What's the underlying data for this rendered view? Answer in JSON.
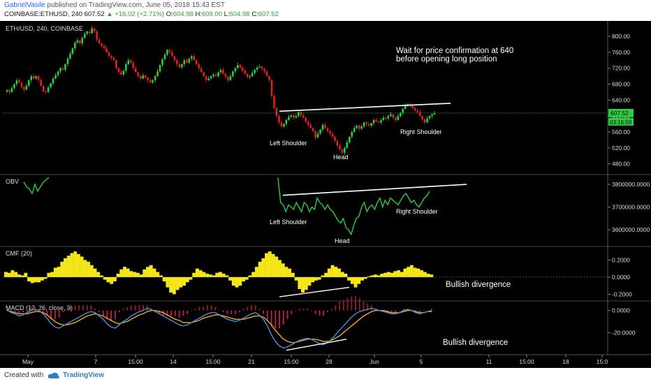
{
  "header": {
    "author": "GabrielVasile",
    "published": "published on TradingView.com, June 05, 2018 15:43 EST",
    "symbol": "COINBASE:ETHUSD, 240",
    "price": "607.52",
    "change_arrow": "▲",
    "change": "+16.02 (+2.71%)",
    "o_label": "O:",
    "o_value": "604.98",
    "h_label": "H:",
    "h_value": "609.00",
    "l_label": "L:",
    "l_value": "604.98",
    "c_label": "C:",
    "c_value": "607.52"
  },
  "footer": {
    "created_with": "Created with",
    "brand": "TradingView"
  },
  "colors": {
    "background": "#000000",
    "up": "#2ecc40",
    "down": "#e0201a",
    "obv": "#2ecc40",
    "cmf": "#f5e61a",
    "macd_line": "#4a90d9",
    "signal_line": "#f5a623",
    "hist_pos": "#8b1a2e",
    "hist_neg": "#b0204a",
    "trendline": "#ffffff",
    "price_badge": "#2ecc40"
  },
  "chart_data": [
    {
      "type": "candlestick",
      "title": "ETH/USD, 240, COINBASE",
      "y_ticks": [
        "800.00",
        "760.00",
        "720.00",
        "680.00",
        "640.00",
        "600.00",
        "560.00",
        "520.00",
        "480.00"
      ],
      "ylim": [
        455,
        835
      ],
      "last_price": "607.52",
      "countdown": "03:16:59",
      "annotations": [
        "Wait for price confirmation at 640",
        "before opening long position",
        "Left Shoulder",
        "Head",
        "Right Shoulder"
      ],
      "close": [
        665,
        660,
        670,
        680,
        690,
        684,
        672,
        666,
        676,
        690,
        700,
        694,
        700,
        690,
        676,
        662,
        660,
        672,
        682,
        694,
        702,
        712,
        720,
        716,
        730,
        744,
        756,
        770,
        784,
        790,
        782,
        796,
        806,
        812,
        808,
        820,
        812,
        792,
        782,
        776,
        770,
        760,
        750,
        746,
        740,
        720,
        710,
        704,
        714,
        730,
        740,
        734,
        720,
        710,
        700,
        694,
        702,
        696,
        690,
        684,
        690,
        700,
        712,
        728,
        742,
        754,
        766,
        760,
        750,
        740,
        730,
        722,
        730,
        740,
        734,
        744,
        750,
        740,
        730,
        720,
        710,
        700,
        690,
        694,
        700,
        704,
        700,
        710,
        716,
        706,
        698,
        690,
        700,
        712,
        720,
        728,
        722,
        714,
        706,
        698,
        700,
        708,
        716,
        722,
        724,
        718,
        712,
        700,
        690,
        650,
        620,
        600,
        584,
        574,
        580,
        590,
        598,
        602,
        596,
        600,
        610,
        602,
        596,
        586,
        578,
        570,
        562,
        546,
        556,
        566,
        578,
        570,
        562,
        556,
        548,
        538,
        526,
        516,
        508,
        520,
        534,
        548,
        560,
        570,
        576,
        568,
        574,
        584,
        580,
        576,
        582,
        590,
        586,
        584,
        590,
        596,
        594,
        600,
        604,
        596,
        590,
        600,
        608,
        618,
        626,
        630,
        626,
        620,
        614,
        610,
        600,
        592,
        584,
        594,
        600,
        604,
        607.52
      ]
    },
    {
      "type": "line",
      "title": "OBV",
      "y_ticks": [
        "3800000.0000",
        "3700000.0000",
        "3600000.0000"
      ],
      "ylim": [
        3530000,
        3840000
      ],
      "annotations": [
        "Left Shoulder",
        "Head",
        "Right Shoulder"
      ],
      "segments": [
        [
          3810000,
          3790000,
          3780000,
          3760000,
          3800000,
          3770000,
          3790000,
          3810000,
          3820000,
          3830000
        ],
        [
          3830000,
          3720000,
          3710000,
          3680000,
          3710000,
          3700000,
          3690000,
          3720000,
          3700000,
          3680000,
          3720000,
          3710000,
          3680000,
          3700000,
          3690000,
          3740000,
          3720000,
          3710000,
          3690000,
          3710000,
          3690000,
          3680000,
          3660000,
          3640000,
          3630000,
          3650000,
          3610000,
          3600000,
          3580000,
          3620000,
          3650000,
          3660000,
          3700000,
          3720000,
          3680000,
          3700000,
          3710000,
          3690000,
          3720000,
          3740000,
          3700000,
          3730000,
          3710000,
          3740000,
          3730000,
          3720000,
          3710000,
          3730000,
          3750000,
          3760000,
          3740000,
          3720000,
          3730000,
          3710000,
          3700000,
          3720000,
          3740000,
          3750000,
          3770000
        ]
      ]
    },
    {
      "type": "bar",
      "title": "CMF (20)",
      "y_ticks": [
        "0.2000",
        "0.0000",
        "-0.2000"
      ],
      "ylim": [
        -0.27,
        0.35
      ],
      "annotations": [
        "Bullish divergence"
      ],
      "values": [
        0.06,
        0.05,
        0.08,
        0.06,
        0.03,
        0.02,
        0.05,
        -0.05,
        -0.07,
        -0.06,
        -0.06,
        -0.04,
        -0.02,
        0.05,
        0.06,
        0.11,
        0.12,
        0.18,
        0.22,
        0.25,
        0.28,
        0.3,
        0.27,
        0.24,
        0.2,
        0.18,
        0.14,
        0.1,
        0.06,
        0.02,
        -0.03,
        -0.06,
        -0.08,
        -0.05,
        0.04,
        0.09,
        0.12,
        0.1,
        0.07,
        0.06,
        0.05,
        0.03,
        0.09,
        0.12,
        0.14,
        0.1,
        0.06,
        0.02,
        -0.05,
        -0.12,
        -0.18,
        -0.2,
        -0.15,
        -0.12,
        -0.1,
        -0.06,
        -0.03,
        0.05,
        0.1,
        0.08,
        0.06,
        0.04,
        0.03,
        0.02,
        0.05,
        0.06,
        0.04,
        0.02,
        -0.04,
        -0.1,
        -0.12,
        -0.1,
        -0.05,
        -0.03,
        0.02,
        0.06,
        0.12,
        0.18,
        0.22,
        0.28,
        0.3,
        0.27,
        0.24,
        0.2,
        0.16,
        0.12,
        0.1,
        0.05,
        -0.04,
        -0.14,
        -0.18,
        -0.15,
        -0.1,
        -0.06,
        -0.04,
        -0.03,
        0.02,
        0.05,
        0.1,
        0.14,
        0.12,
        0.1,
        0.06,
        0.04,
        -0.04,
        -0.08,
        -0.12,
        -0.08,
        -0.04,
        -0.02,
        0.01,
        0.02,
        0.03,
        0.02,
        0.04,
        0.05,
        0.06,
        0.05,
        0.07,
        0.08,
        0.06,
        0.1,
        0.12,
        0.14,
        0.11,
        0.1,
        0.08,
        0.06,
        0.04,
        0.03
      ]
    },
    {
      "type": "line",
      "title": "MACD (12, 26, close, 9)",
      "y_ticks": [
        "0.0000",
        "-20.0000"
      ],
      "ylim": [
        -40,
        8
      ],
      "annotations": [
        "Bullish divergence"
      ],
      "macd": [
        1,
        -2,
        -3,
        -5,
        -4,
        -2,
        0,
        1,
        0,
        -3,
        -7,
        -12,
        -15,
        -16,
        -14,
        -12,
        -10,
        -8,
        -6,
        -4,
        -2,
        -1,
        -2,
        -5,
        -8,
        -12,
        -15,
        -16,
        -13,
        -10,
        -8,
        -5,
        -3,
        -1,
        0,
        2,
        1,
        -1,
        -3,
        -5,
        -7,
        -9,
        -11,
        -13,
        -14,
        -13,
        -11,
        -9,
        -7,
        -5,
        -3,
        -2,
        -2,
        -4,
        -6,
        -8,
        -9,
        -10,
        -9,
        -7,
        -5,
        -3,
        -2,
        -4,
        -8,
        -14,
        -22,
        -28,
        -32,
        -34,
        -33,
        -31,
        -29,
        -27,
        -26,
        -25,
        -26,
        -28,
        -30,
        -31,
        -29,
        -26,
        -22,
        -18,
        -14,
        -10,
        -6,
        -3,
        -1,
        0,
        1,
        2,
        1,
        0,
        -1,
        -2,
        -3,
        -3,
        -2,
        0,
        1,
        0,
        -2,
        -3,
        -2,
        -1,
        0
      ],
      "signal": [
        0,
        -1,
        -2,
        -3,
        -3,
        -3,
        -2,
        -1,
        -1,
        -2,
        -4,
        -7,
        -10,
        -12,
        -13,
        -13,
        -12,
        -11,
        -9,
        -7,
        -5,
        -4,
        -3,
        -4,
        -5,
        -7,
        -9,
        -11,
        -12,
        -11,
        -10,
        -8,
        -6,
        -4,
        -3,
        -1,
        0,
        0,
        -1,
        -2,
        -4,
        -6,
        -8,
        -9,
        -11,
        -11,
        -11,
        -10,
        -9,
        -7,
        -6,
        -5,
        -4,
        -4,
        -5,
        -6,
        -7,
        -8,
        -8,
        -8,
        -7,
        -6,
        -5,
        -5,
        -6,
        -9,
        -13,
        -18,
        -22,
        -26,
        -28,
        -29,
        -29,
        -28,
        -27,
        -26,
        -26,
        -26,
        -27,
        -28,
        -28,
        -27,
        -25,
        -23,
        -20,
        -17,
        -14,
        -11,
        -8,
        -5,
        -3,
        -1,
        0,
        0,
        0,
        -1,
        -2,
        -2,
        -2,
        -1,
        0,
        0,
        -1,
        -2,
        -2,
        -1,
        -1
      ]
    }
  ],
  "x_ticks": [
    "May",
    "7",
    "15:00",
    "14",
    "15:00",
    "21",
    "15:00",
    "28",
    "Jun",
    "5",
    "11",
    "15:00",
    "18",
    "15:0"
  ]
}
